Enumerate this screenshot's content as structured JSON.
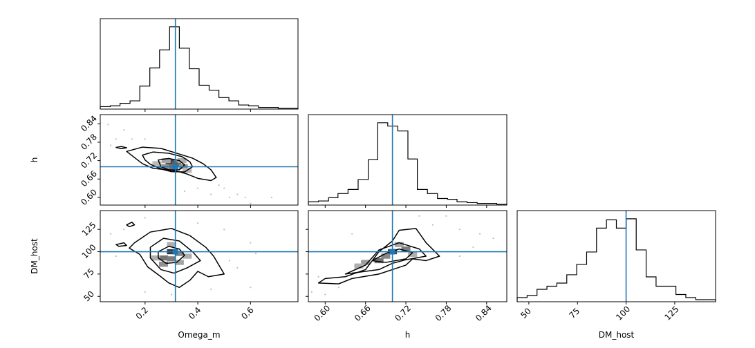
{
  "chart_data": {
    "type": "corner",
    "params": [
      "Omega_m",
      "h",
      "DM_host"
    ],
    "truths": {
      "Omega_m": 0.315,
      "h": 0.7,
      "DM_host": 100
    },
    "truth_color": "#1f77b4",
    "hist_1d": {
      "Omega_m": {
        "range": [
          0.03,
          0.78
        ],
        "ticks": [
          0.2,
          0.4,
          0.6
        ],
        "tick_labels": [
          "0.2",
          "0.4",
          "0.6"
        ],
        "bin_edges": [
          0.03,
          0.068,
          0.105,
          0.143,
          0.18,
          0.218,
          0.255,
          0.293,
          0.33,
          0.368,
          0.405,
          0.443,
          0.48,
          0.518,
          0.555,
          0.593,
          0.63,
          0.668,
          0.705,
          0.743,
          0.78
        ],
        "counts": [
          3,
          4,
          7,
          10,
          28,
          50,
          72,
          100,
          74,
          49,
          29,
          23,
          14,
          10,
          5,
          4,
          2,
          2,
          1,
          1
        ]
      },
      "h": {
        "range": [
          0.575,
          0.87
        ],
        "ticks": [
          0.6,
          0.66,
          0.72,
          0.78,
          0.84
        ],
        "tick_labels": [
          "0.60",
          "0.66",
          "0.72",
          "0.78",
          "0.84"
        ],
        "bin_edges": [
          0.575,
          0.59,
          0.605,
          0.619,
          0.634,
          0.649,
          0.664,
          0.678,
          0.693,
          0.708,
          0.723,
          0.737,
          0.752,
          0.767,
          0.782,
          0.796,
          0.811,
          0.826,
          0.841,
          0.855,
          0.87
        ],
        "counts": [
          4,
          5,
          9,
          14,
          19,
          31,
          55,
          100,
          96,
          90,
          56,
          19,
          14,
          8,
          7,
          4,
          3,
          2,
          2,
          1
        ]
      },
      "DM_host": {
        "range": [
          44,
          146
        ],
        "ticks": [
          50,
          75,
          100,
          125
        ],
        "tick_labels": [
          "50",
          "75",
          "100",
          "125"
        ],
        "bin_edges": [
          44,
          49.1,
          54.2,
          59.3,
          64.4,
          69.5,
          74.6,
          79.7,
          84.8,
          89.9,
          95,
          100.1,
          105.2,
          110.3,
          115.4,
          120.5,
          125.6,
          130.7,
          135.8,
          140.9,
          146
        ],
        "counts": [
          4,
          6,
          12,
          15,
          18,
          26,
          36,
          48,
          71,
          79,
          71,
          80,
          50,
          24,
          15,
          15,
          7,
          4,
          2,
          2
        ]
      }
    },
    "axis_labels": {
      "x": [
        "Omega_m",
        "h",
        "DM_host"
      ],
      "y": [
        "h",
        "DM_host"
      ]
    },
    "pairs": [
      {
        "x": "Omega_m",
        "y": "h",
        "ylim": [
          0.575,
          0.87
        ],
        "yticks": [
          0.6,
          0.66,
          0.72,
          0.78,
          0.84
        ],
        "ytick_labels": [
          "0.60",
          "0.66",
          "0.72",
          "0.78",
          "0.84"
        ],
        "contours": [
          [
            [
              0.09,
              0.763
            ],
            [
              0.11,
              0.766
            ],
            [
              0.13,
              0.762
            ],
            [
              0.11,
              0.759
            ]
          ],
          [
            [
              0.13,
              0.75
            ],
            [
              0.19,
              0.764
            ],
            [
              0.26,
              0.76
            ],
            [
              0.32,
              0.744
            ],
            [
              0.38,
              0.728
            ],
            [
              0.42,
              0.71
            ],
            [
              0.45,
              0.69
            ],
            [
              0.47,
              0.665
            ],
            [
              0.45,
              0.655
            ],
            [
              0.4,
              0.662
            ],
            [
              0.36,
              0.676
            ],
            [
              0.32,
              0.686
            ],
            [
              0.28,
              0.69
            ],
            [
              0.23,
              0.695
            ],
            [
              0.19,
              0.71
            ],
            [
              0.16,
              0.73
            ]
          ],
          [
            [
              0.19,
              0.738
            ],
            [
              0.23,
              0.748
            ],
            [
              0.29,
              0.744
            ],
            [
              0.34,
              0.733
            ],
            [
              0.37,
              0.716
            ],
            [
              0.38,
              0.7
            ],
            [
              0.35,
              0.683
            ],
            [
              0.3,
              0.684
            ],
            [
              0.26,
              0.693
            ],
            [
              0.22,
              0.708
            ],
            [
              0.2,
              0.722
            ]
          ],
          [
            [
              0.25,
              0.722
            ],
            [
              0.29,
              0.727
            ],
            [
              0.33,
              0.72
            ],
            [
              0.35,
              0.706
            ],
            [
              0.33,
              0.69
            ],
            [
              0.29,
              0.69
            ],
            [
              0.26,
              0.7
            ]
          ]
        ],
        "density": [
          {
            "x": 0.295,
            "y": 0.715,
            "s": 0.85
          },
          {
            "x": 0.32,
            "y": 0.71,
            "s": 0.7
          },
          {
            "x": 0.305,
            "y": 0.7,
            "s": 0.6
          },
          {
            "x": 0.27,
            "y": 0.7,
            "s": 0.45
          },
          {
            "x": 0.345,
            "y": 0.7,
            "s": 0.45
          },
          {
            "x": 0.28,
            "y": 0.72,
            "s": 0.35
          },
          {
            "x": 0.34,
            "y": 0.72,
            "s": 0.3
          },
          {
            "x": 0.245,
            "y": 0.71,
            "s": 0.25
          },
          {
            "x": 0.36,
            "y": 0.688,
            "s": 0.25
          }
        ],
        "points": [
          [
            0.06,
            0.838
          ],
          [
            0.12,
            0.82
          ],
          [
            0.09,
            0.79
          ],
          [
            0.15,
            0.79
          ],
          [
            0.5,
            0.63
          ],
          [
            0.55,
            0.61
          ],
          [
            0.6,
            0.58
          ],
          [
            0.58,
            0.6
          ],
          [
            0.52,
            0.6
          ],
          [
            0.45,
            0.61
          ],
          [
            0.4,
            0.63
          ],
          [
            0.68,
            0.6
          ],
          [
            0.07,
            0.77
          ],
          [
            0.2,
            0.79
          ],
          [
            0.48,
            0.64
          ],
          [
            0.35,
            0.62
          ]
        ]
      },
      {
        "x": "Omega_m",
        "y": "DM_host",
        "ylim": [
          44,
          146
        ],
        "yticks": [
          50,
          75,
          100,
          125
        ],
        "ytick_labels": [
          "50",
          "75",
          "100",
          "125"
        ],
        "contours": [
          [
            [
              0.13,
              130
            ],
            [
              0.15,
              133
            ],
            [
              0.16,
              130
            ],
            [
              0.14,
              128
            ]
          ],
          [
            [
              0.09,
              108
            ],
            [
              0.12,
              110
            ],
            [
              0.13,
              107
            ],
            [
              0.1,
              106
            ]
          ],
          [
            [
              0.16,
              110
            ],
            [
              0.22,
              122
            ],
            [
              0.3,
              126
            ],
            [
              0.37,
              118
            ],
            [
              0.43,
              105
            ],
            [
              0.46,
              95
            ],
            [
              0.5,
              75
            ],
            [
              0.44,
              72
            ],
            [
              0.4,
              78
            ],
            [
              0.37,
              68
            ],
            [
              0.33,
              60
            ],
            [
              0.29,
              65
            ],
            [
              0.26,
              72
            ],
            [
              0.21,
              83
            ],
            [
              0.18,
              97
            ],
            [
              0.14,
              104
            ]
          ],
          [
            [
              0.22,
              105
            ],
            [
              0.27,
              115
            ],
            [
              0.33,
              112
            ],
            [
              0.38,
              100
            ],
            [
              0.41,
              90
            ],
            [
              0.36,
              82
            ],
            [
              0.31,
              76
            ],
            [
              0.26,
              80
            ],
            [
              0.22,
              93
            ]
          ],
          [
            [
              0.25,
              100
            ],
            [
              0.29,
              106
            ],
            [
              0.33,
              103
            ],
            [
              0.35,
              96
            ],
            [
              0.32,
              88
            ],
            [
              0.28,
              87
            ],
            [
              0.25,
              93
            ]
          ]
        ],
        "density": [
          {
            "x": 0.3,
            "y": 100,
            "s": 0.9
          },
          {
            "x": 0.27,
            "y": 93,
            "s": 0.6
          },
          {
            "x": 0.3,
            "y": 92,
            "s": 0.55
          },
          {
            "x": 0.33,
            "y": 98,
            "s": 0.5
          },
          {
            "x": 0.27,
            "y": 86,
            "s": 0.45
          },
          {
            "x": 0.33,
            "y": 88,
            "s": 0.35
          },
          {
            "x": 0.24,
            "y": 93,
            "s": 0.3
          },
          {
            "x": 0.3,
            "y": 108,
            "s": 0.3
          },
          {
            "x": 0.36,
            "y": 95,
            "s": 0.3
          }
        ],
        "points": [
          [
            0.07,
            120
          ],
          [
            0.12,
            125
          ],
          [
            0.2,
            138
          ],
          [
            0.4,
            132
          ],
          [
            0.5,
            125
          ],
          [
            0.6,
            110
          ],
          [
            0.55,
            82
          ],
          [
            0.6,
            60
          ],
          [
            0.45,
            58
          ],
          [
            0.2,
            55
          ],
          [
            0.3,
            52
          ],
          [
            0.09,
            95
          ],
          [
            0.52,
            90
          ],
          [
            0.62,
            98
          ]
        ]
      },
      {
        "x": "h",
        "y": "DM_host",
        "ylim": [
          44,
          146
        ],
        "yticks": [
          50,
          75,
          100,
          125
        ],
        "ytick_labels": [
          "50",
          "75",
          "100",
          "125"
        ],
        "contours": [
          [
            [
              0.59,
              65
            ],
            [
              0.6,
              70
            ],
            [
              0.63,
              72
            ],
            [
              0.66,
              80
            ],
            [
              0.68,
              100
            ],
            [
              0.7,
              112
            ],
            [
              0.71,
              124
            ],
            [
              0.735,
              126
            ],
            [
              0.75,
              110
            ],
            [
              0.77,
              95
            ],
            [
              0.75,
              90
            ],
            [
              0.73,
              92
            ],
            [
              0.72,
              85
            ],
            [
              0.7,
              80
            ],
            [
              0.68,
              75
            ],
            [
              0.64,
              70
            ],
            [
              0.62,
              64
            ]
          ],
          [
            [
              0.63,
              75
            ],
            [
              0.66,
              85
            ],
            [
              0.68,
              102
            ],
            [
              0.71,
              110
            ],
            [
              0.74,
              103
            ],
            [
              0.75,
              95
            ],
            [
              0.72,
              91
            ],
            [
              0.7,
              87
            ],
            [
              0.68,
              80
            ]
          ],
          [
            [
              0.67,
              90
            ],
            [
              0.69,
              98
            ],
            [
              0.71,
              103
            ],
            [
              0.73,
              99
            ],
            [
              0.72,
              92
            ],
            [
              0.69,
              88
            ]
          ]
        ],
        "density": [
          {
            "x": 0.7,
            "y": 100,
            "s": 0.85
          },
          {
            "x": 0.68,
            "y": 90,
            "s": 0.6
          },
          {
            "x": 0.72,
            "y": 103,
            "s": 0.55
          },
          {
            "x": 0.69,
            "y": 95,
            "s": 0.5
          },
          {
            "x": 0.66,
            "y": 88,
            "s": 0.4
          },
          {
            "x": 0.71,
            "y": 108,
            "s": 0.35
          },
          {
            "x": 0.73,
            "y": 97,
            "s": 0.3
          },
          {
            "x": 0.65,
            "y": 84,
            "s": 0.3
          }
        ],
        "points": [
          [
            0.6,
            52
          ],
          [
            0.62,
            60
          ],
          [
            0.58,
            55
          ],
          [
            0.8,
            125
          ],
          [
            0.83,
            120
          ],
          [
            0.78,
            140
          ],
          [
            0.82,
            105
          ],
          [
            0.85,
            115
          ],
          [
            0.76,
            130
          ],
          [
            0.59,
            72
          ],
          [
            0.64,
            120
          ],
          [
            0.8,
            95
          ],
          [
            0.74,
            140
          ]
        ]
      }
    ]
  }
}
